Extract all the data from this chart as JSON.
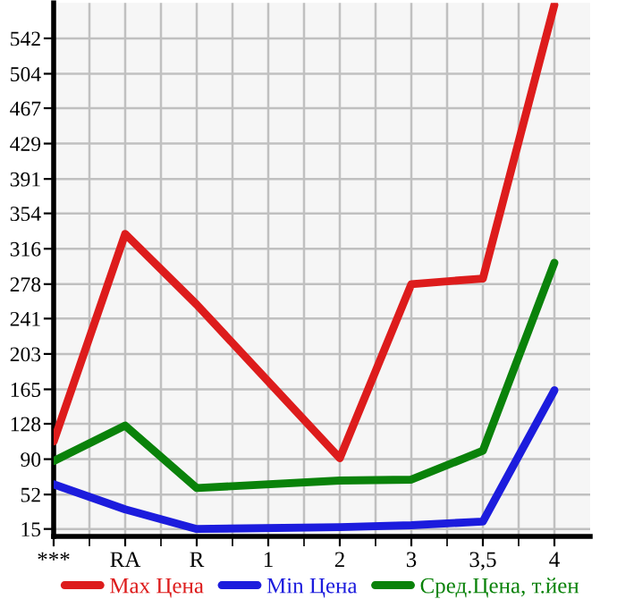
{
  "chart_data": {
    "type": "line",
    "categories": [
      "***",
      "RA",
      "R",
      "1",
      "2",
      "3",
      "3,5",
      "4"
    ],
    "series": [
      {
        "name": "Max Цена",
        "color": "#dd1c1c",
        "values": [
          109,
          332,
          256,
          null,
          91,
          278,
          284,
          578
        ]
      },
      {
        "name": "Min Цена",
        "color": "#1c1cdd",
        "values": [
          63,
          36,
          15,
          null,
          17,
          19,
          23,
          164
        ]
      },
      {
        "name": "Сред.Цена, т.йен",
        "color": "#0a820a",
        "values": [
          88,
          126,
          59,
          null,
          67,
          68,
          99,
          301
        ]
      }
    ],
    "ylim": [
      7,
      580
    ],
    "yticks": [
      15,
      52,
      90,
      128,
      165,
      203,
      241,
      278,
      316,
      354,
      391,
      429,
      467,
      504,
      542
    ],
    "grid": true,
    "legend": "bottom",
    "marker": "none",
    "line_style": "solid"
  }
}
